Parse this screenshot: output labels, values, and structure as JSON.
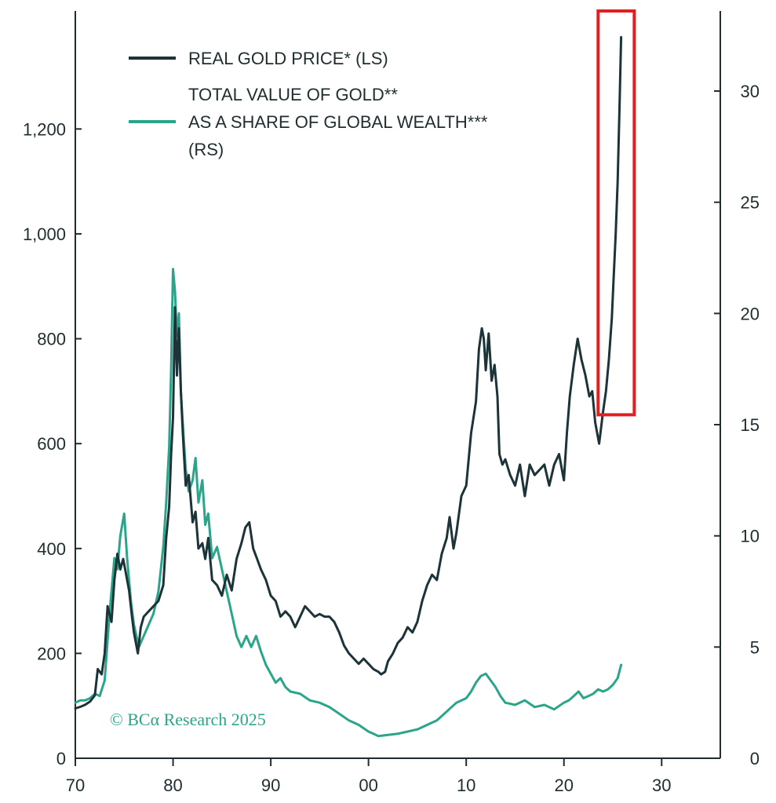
{
  "colors": {
    "gold_price": "#1c3338",
    "gold_share": "#2aa58a",
    "highlight": "#e02020",
    "axis": "#1f2d2f"
  },
  "credit": "© BCα Research 2025",
  "chart_data": {
    "type": "line",
    "title": "",
    "xlabel": "",
    "ylabel_left": "",
    "ylabel_right": "",
    "x_ticks": [
      "70",
      "80",
      "90",
      "00",
      "10",
      "20",
      "30"
    ],
    "x_tick_values": [
      1970,
      1980,
      1990,
      2000,
      2010,
      2020,
      2030
    ],
    "xlim": [
      1970,
      2036
    ],
    "left_ticks": [
      "0",
      "200",
      "400",
      "600",
      "800",
      "1,000",
      "1,200"
    ],
    "left_tick_values": [
      0,
      200,
      400,
      600,
      800,
      1000,
      1200
    ],
    "ylim_left": [
      0,
      1425
    ],
    "right_ticks": [
      "0",
      "5",
      "10",
      "15",
      "20",
      "25",
      "30"
    ],
    "right_tick_values": [
      0,
      5,
      10,
      15,
      20,
      25,
      30
    ],
    "ylim_right": [
      0,
      33.6
    ],
    "legend_position": "top-left",
    "highlight_region": {
      "x": [
        2023.5,
        2027.2
      ],
      "y_left": [
        655,
        1425
      ]
    },
    "series": [
      {
        "name": "REAL GOLD PRICE* (LS)",
        "axis": "left",
        "color_key": "gold_price",
        "x": [
          1970,
          1970.5,
          1971,
          1971.5,
          1972,
          1972.3,
          1972.7,
          1973,
          1973.3,
          1973.7,
          1974,
          1974.3,
          1974.6,
          1974.9,
          1975.2,
          1975.5,
          1975.8,
          1976,
          1976.4,
          1976.7,
          1977,
          1977.5,
          1978,
          1978.5,
          1979,
          1979.3,
          1979.6,
          1979.8,
          1980,
          1980.2,
          1980.4,
          1980.6,
          1980.8,
          1981,
          1981.3,
          1981.6,
          1982,
          1982.3,
          1982.6,
          1983,
          1983.3,
          1983.6,
          1984,
          1984.5,
          1985,
          1985.5,
          1986,
          1986.5,
          1987,
          1987.4,
          1987.8,
          1988.2,
          1988.6,
          1989,
          1989.5,
          1990,
          1990.5,
          1991,
          1991.5,
          1992,
          1992.5,
          1993,
          1993.5,
          1994,
          1994.5,
          1995,
          1995.5,
          1996,
          1996.5,
          1997,
          1997.5,
          1998,
          1998.5,
          1999,
          1999.5,
          2000,
          2000.5,
          2001,
          2001.3,
          2001.7,
          2002,
          2002.5,
          2003,
          2003.5,
          2004,
          2004.5,
          2005,
          2005.5,
          2006,
          2006.5,
          2007,
          2007.5,
          2008,
          2008.3,
          2008.7,
          2009,
          2009.5,
          2010,
          2010.5,
          2011,
          2011.3,
          2011.6,
          2011.8,
          2012,
          2012.3,
          2012.6,
          2012.9,
          2013.2,
          2013.4,
          2013.7,
          2014,
          2014.5,
          2015,
          2015.5,
          2016,
          2016.5,
          2017,
          2017.5,
          2018,
          2018.5,
          2019,
          2019.5,
          2020,
          2020.3,
          2020.6,
          2021,
          2021.4,
          2021.8,
          2022.2,
          2022.6,
          2022.9,
          2023.2,
          2023.6,
          2024,
          2024.3,
          2024.6,
          2024.9,
          2025.1,
          2025.3,
          2025.5,
          2025.7,
          2025.85
        ],
        "y": [
          95,
          98,
          102,
          108,
          120,
          170,
          160,
          200,
          290,
          260,
          340,
          390,
          360,
          380,
          350,
          320,
          270,
          240,
          200,
          250,
          270,
          280,
          290,
          300,
          330,
          420,
          480,
          580,
          650,
          860,
          730,
          820,
          700,
          620,
          520,
          540,
          450,
          470,
          400,
          410,
          380,
          420,
          340,
          330,
          310,
          350,
          320,
          380,
          410,
          440,
          450,
          400,
          380,
          360,
          340,
          310,
          300,
          270,
          280,
          270,
          250,
          270,
          290,
          280,
          270,
          275,
          270,
          270,
          260,
          240,
          215,
          200,
          190,
          180,
          190,
          180,
          170,
          165,
          160,
          165,
          185,
          200,
          220,
          230,
          250,
          240,
          260,
          300,
          330,
          350,
          340,
          390,
          420,
          460,
          400,
          430,
          500,
          520,
          620,
          680,
          780,
          820,
          800,
          740,
          810,
          720,
          750,
          690,
          580,
          560,
          570,
          540,
          520,
          560,
          500,
          560,
          540,
          550,
          560,
          520,
          560,
          580,
          530,
          620,
          690,
          750,
          800,
          760,
          730,
          690,
          700,
          640,
          600,
          660,
          700,
          760,
          840,
          920,
          1000,
          1100,
          1250,
          1375
        ]
      },
      {
        "name": "TOTAL VALUE OF GOLD** AS A SHARE OF GLOBAL WEALTH*** (RS)",
        "axis": "right",
        "color_key": "gold_share",
        "x": [
          1970,
          1970.5,
          1971,
          1971.5,
          1972,
          1972.5,
          1973,
          1973.5,
          1974,
          1974.3,
          1974.6,
          1975,
          1975.3,
          1975.7,
          1976,
          1976.5,
          1977,
          1977.5,
          1978,
          1978.5,
          1979,
          1979.3,
          1979.6,
          1979.8,
          1980,
          1980.2,
          1980.4,
          1980.6,
          1980.8,
          1981,
          1981.3,
          1981.6,
          1982,
          1982.3,
          1982.6,
          1983,
          1983.3,
          1983.6,
          1984,
          1984.5,
          1985,
          1985.5,
          1986,
          1986.5,
          1987,
          1987.5,
          1988,
          1988.5,
          1989,
          1989.5,
          1990,
          1990.5,
          1991,
          1991.5,
          1992,
          1993,
          1994,
          1995,
          1996,
          1997,
          1998,
          1999,
          2000,
          2000.5,
          2001,
          2002,
          2003,
          2004,
          2005,
          2006,
          2007,
          2007.5,
          2008,
          2008.5,
          2009,
          2010,
          2010.5,
          2011,
          2011.5,
          2012,
          2012.5,
          2013,
          2013.5,
          2014,
          2015,
          2016,
          2017,
          2018,
          2019,
          2020,
          2020.5,
          2021,
          2021.5,
          2022,
          2022.5,
          2023,
          2023.5,
          2024,
          2024.5,
          2025,
          2025.5,
          2025.85
        ],
        "y": [
          2.5,
          2.6,
          2.6,
          2.7,
          2.9,
          2.8,
          3.5,
          6.5,
          9.0,
          8.5,
          10.0,
          11.0,
          9.0,
          7.0,
          6.0,
          5.0,
          5.5,
          6.0,
          6.5,
          7.5,
          9.5,
          11.5,
          14.0,
          17.5,
          22.0,
          21.0,
          19.0,
          20.0,
          16.5,
          15.0,
          13.0,
          12.0,
          12.5,
          13.5,
          11.5,
          12.5,
          10.5,
          11.0,
          9.0,
          9.5,
          8.5,
          7.5,
          6.5,
          5.5,
          5.0,
          5.5,
          5.0,
          5.5,
          4.8,
          4.2,
          3.8,
          3.4,
          3.6,
          3.2,
          3.0,
          2.9,
          2.6,
          2.5,
          2.3,
          2.0,
          1.7,
          1.5,
          1.2,
          1.1,
          1.0,
          1.05,
          1.1,
          1.2,
          1.3,
          1.5,
          1.7,
          1.9,
          2.1,
          2.3,
          2.5,
          2.7,
          3.0,
          3.4,
          3.7,
          3.8,
          3.5,
          3.2,
          2.8,
          2.5,
          2.4,
          2.6,
          2.3,
          2.4,
          2.2,
          2.5,
          2.6,
          2.8,
          3.0,
          2.7,
          2.8,
          2.9,
          3.1,
          3.0,
          3.1,
          3.3,
          3.6,
          4.2
        ]
      }
    ]
  },
  "legend": {
    "gold_price_lines": [
      "REAL GOLD PRICE* (LS)"
    ],
    "gold_share_lines": [
      "TOTAL VALUE OF GOLD**",
      "AS A SHARE OF GLOBAL WEALTH***",
      "(RS)"
    ]
  }
}
